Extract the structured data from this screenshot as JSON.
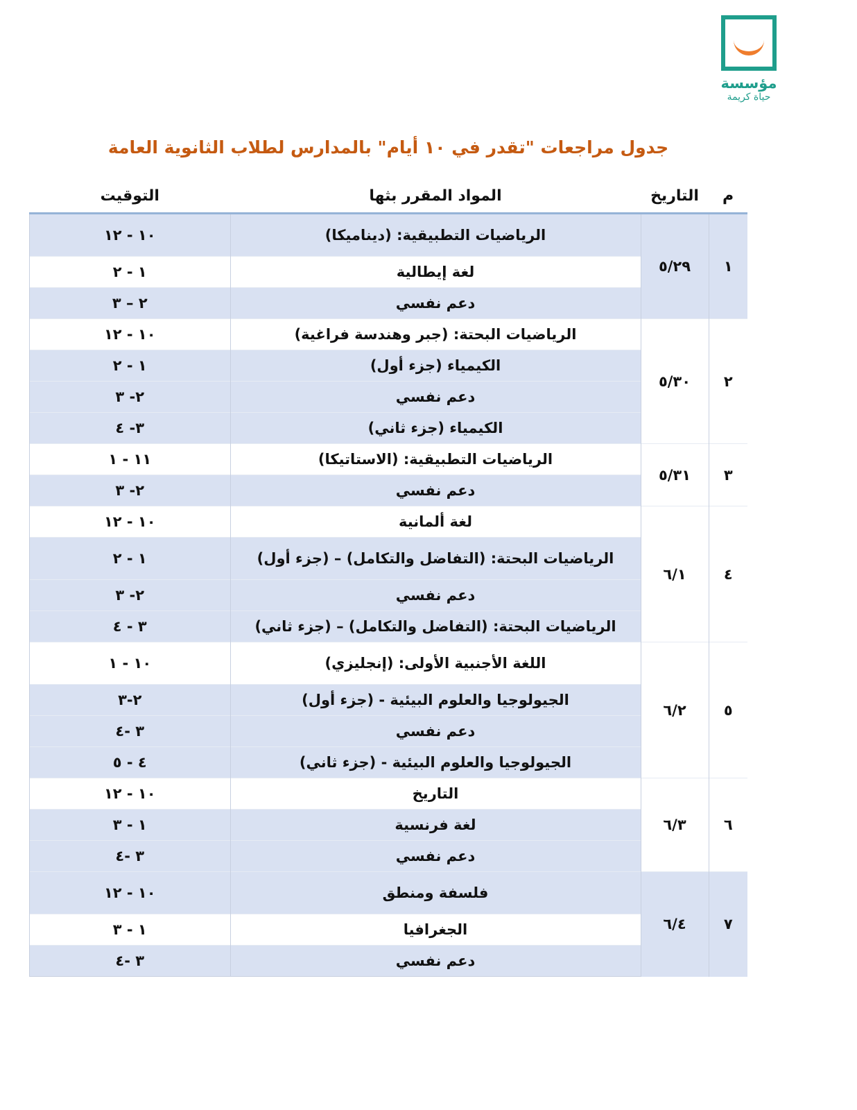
{
  "logo": {
    "line1": "مؤسسة",
    "line2": "حياة كريمة",
    "colors": {
      "frame": "#1f9e8c",
      "smile": "#ef7d2d"
    }
  },
  "title": "جدول مراجعات \"تقدر في ١٠ أيام\" بالمدارس لطلاب الثانوية العامة",
  "headers": {
    "num": "م",
    "date": "التاريخ",
    "subject": "المواد المقرر بثها",
    "time": "التوقيت"
  },
  "groups": [
    {
      "num": "١",
      "date": "٥/٢٩",
      "rows": [
        {
          "subject": "الرياضيات التطبيقية: (ديناميكا)",
          "time": "١٠ - ١٢"
        },
        {
          "subject": "لغة إيطالية",
          "time": "١ - ٢"
        },
        {
          "subject": "دعم نفسي",
          "time": "٢ – ٣"
        }
      ]
    },
    {
      "num": "٢",
      "date": "٥/٣٠",
      "rows": [
        {
          "subject": "الرياضيات البحتة: (جبر وهندسة فراغية)",
          "time": "١٠ - ١٢"
        },
        {
          "subject": "الكيمياء (جزء أول)",
          "time": "١ - ٢"
        },
        {
          "subject": "دعم نفسي",
          "time": "٢- ٣"
        },
        {
          "subject": "الكيمياء (جزء ثاني)",
          "time": "٣- ٤"
        }
      ]
    },
    {
      "num": "٣",
      "date": "٥/٣١",
      "rows": [
        {
          "subject": "الرياضيات التطبيقية: (الاستاتيكا)",
          "time": "١١ - ١"
        },
        {
          "subject": "دعم نفسي",
          "time": "٢- ٣"
        }
      ]
    },
    {
      "num": "٤",
      "date": "٦/١",
      "rows": [
        {
          "subject": "لغة ألمانية",
          "time": "١٠ - ١٢"
        },
        {
          "subject": "الرياضيات البحتة: (التفاضل والتكامل) – (جزء أول)",
          "time": "١ - ٢"
        },
        {
          "subject": "دعم نفسي",
          "time": "٢- ٣"
        },
        {
          "subject": "الرياضيات البحتة: (التفاضل والتكامل) – (جزء ثاني)",
          "time": "٣ - ٤"
        }
      ]
    },
    {
      "num": "٥",
      "date": "٦/٢",
      "rows": [
        {
          "subject": "اللغة الأجنبية الأولى: (إنجليزي)",
          "time": "١٠ - ١"
        },
        {
          "subject": "الجيولوجيا والعلوم البيئية - (جزء أول)",
          "time": "٢-٣"
        },
        {
          "subject": "دعم نفسي",
          "time": "٣ -٤"
        },
        {
          "subject": "الجيولوجيا والعلوم البيئية - (جزء ثاني)",
          "time": "٤ - ٥"
        }
      ]
    },
    {
      "num": "٦",
      "date": "٦/٣",
      "rows": [
        {
          "subject": "التاريخ",
          "time": "١٠ - ١٢"
        },
        {
          "subject": "لغة فرنسية",
          "time": "١ - ٣"
        },
        {
          "subject": "دعم نفسي",
          "time": "٣ -٤"
        }
      ]
    },
    {
      "num": "٧",
      "date": "٦/٤",
      "rows": [
        {
          "subject": "فلسفة ومنطق",
          "time": "١٠ - ١٢"
        },
        {
          "subject": "الجغرافيا",
          "time": "١ - ٣"
        },
        {
          "subject": "دعم نفسي",
          "time": "٣ -٤"
        }
      ]
    }
  ],
  "colors": {
    "title": "#c55a11",
    "row_shade": "#d9e1f2"
  }
}
